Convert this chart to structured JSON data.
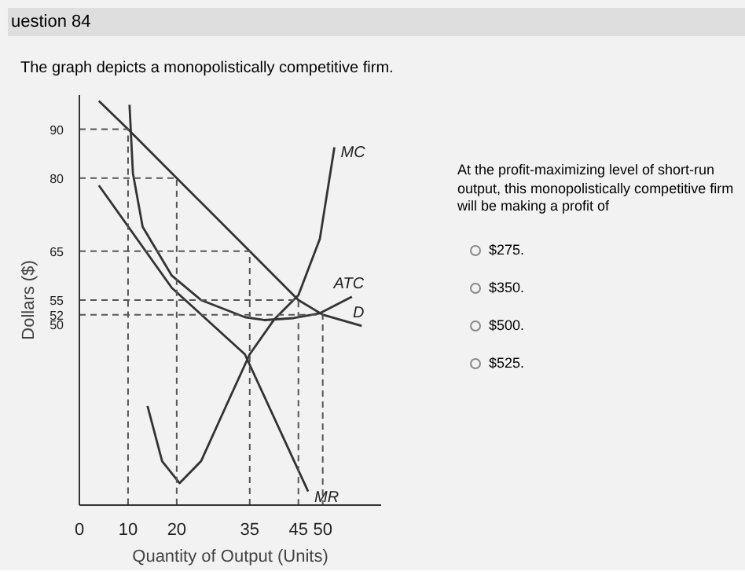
{
  "chart_data": {
    "type": "line",
    "title": "The graph depicts a monopolistically competitive firm.",
    "xlabel": "Quantity of Output (Units)",
    "ylabel": "Dollars ($)",
    "annotations": [
      "uestion 84",
      "At the profit-maximizing level of short-run output, this monopolistically competitive firm will be making a profit of",
      "$275.",
      "$350.",
      "$500.",
      "$525."
    ],
    "xlim": [
      0,
      62
    ],
    "xticks": [
      0,
      10,
      20,
      35,
      45,
      50
    ],
    "ylim": [
      13,
      97
    ],
    "yticks": [
      50,
      52,
      55,
      65,
      80,
      90
    ],
    "series": [
      {
        "name": "D",
        "color": "#333333",
        "x": [
          4,
          10,
          20,
          35,
          45,
          50,
          58
        ],
        "values": [
          95.8,
          90,
          80,
          65,
          55,
          52,
          49.7
        ]
      },
      {
        "name": "MR",
        "color": "#333333",
        "x": [
          4,
          19,
          34,
          47
        ],
        "values": [
          78.5,
          57.5,
          43.9,
          15.8
        ]
      },
      {
        "name": "MC",
        "color": "#333333",
        "x": [
          14,
          17,
          20.6,
          25,
          30,
          35,
          40,
          45,
          49.4,
          52.4
        ],
        "values": [
          33.3,
          22,
          17.5,
          22,
          33,
          43.9,
          51,
          56,
          67.5,
          86.3
        ]
      },
      {
        "name": "ATC",
        "color": "#333333",
        "x": [
          10.3,
          11,
          13,
          19,
          25,
          34,
          38,
          44,
          49.4,
          56
        ],
        "values": [
          95,
          81,
          70,
          60,
          55,
          51.5,
          50.9,
          51.3,
          52.3,
          55.7
        ]
      },
      {
        "color": "#555555",
        "line_style": "dashed",
        "x": [
          0,
          10,
          10
        ],
        "values": [
          90,
          90,
          13
        ]
      },
      {
        "color": "#555555",
        "line_style": "dashed",
        "x": [
          0,
          20,
          20
        ],
        "values": [
          80,
          80,
          13
        ]
      },
      {
        "color": "#555555",
        "line_style": "dashed",
        "x": [
          0,
          35,
          35
        ],
        "values": [
          65,
          65,
          13
        ]
      },
      {
        "color": "#555555",
        "line_style": "dashed",
        "x": [
          0,
          45,
          45
        ],
        "values": [
          55,
          55,
          13
        ]
      },
      {
        "color": "#555555",
        "line_style": "dashed",
        "x": [
          0,
          50,
          50
        ],
        "values": [
          52,
          52,
          13
        ]
      }
    ]
  }
}
